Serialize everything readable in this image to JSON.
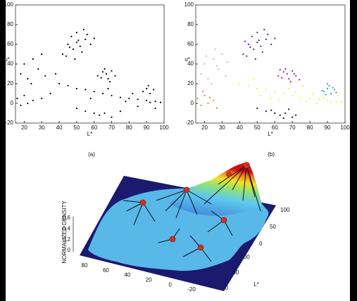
{
  "chart_data": [
    {
      "type": "scatter",
      "xlabel": "L*",
      "ylabel": "u*",
      "caption": "(a)",
      "xlim": [
        15,
        100
      ],
      "ylim": [
        -20,
        100
      ],
      "xticks": [
        20,
        30,
        40,
        50,
        60,
        70,
        80,
        90,
        100
      ],
      "yticks": [
        -20,
        0,
        20,
        40,
        60,
        80,
        100
      ],
      "series": [
        {
          "color": "#000000",
          "x": [
            42,
            45,
            48,
            50,
            52,
            55,
            47,
            44,
            53,
            58,
            50,
            46,
            56,
            60,
            49,
            51,
            54,
            62,
            65,
            67,
            68,
            70,
            72,
            66,
            69,
            64,
            88,
            90,
            92,
            94,
            91,
            40,
            45,
            50,
            55,
            60,
            65,
            70,
            75,
            80,
            85,
            90,
            95,
            98,
            58,
            68,
            78,
            82,
            92,
            18,
            20,
            22,
            25,
            28,
            30,
            32,
            24,
            16,
            18,
            20,
            22,
            25,
            50,
            55,
            60,
            63,
            66,
            70,
            35,
            38,
            30,
            85,
            95,
            75
          ],
          "values": [
            50,
            60,
            55,
            62,
            58,
            65,
            68,
            48,
            52,
            60,
            72,
            57,
            70,
            66,
            45,
            64,
            75,
            28,
            32,
            30,
            25,
            33,
            28,
            35,
            22,
            26,
            12,
            15,
            10,
            14,
            18,
            20,
            18,
            15,
            14,
            12,
            10,
            8,
            6,
            5,
            4,
            3,
            2,
            1,
            5,
            15,
            2,
            10,
            1,
            30,
            40,
            25,
            45,
            35,
            50,
            28,
            20,
            5,
            -2,
            8,
            0,
            3,
            -5,
            -8,
            -10,
            -12,
            -10,
            -14,
            10,
            30,
            5,
            -3,
            -5,
            -8
          ]
        }
      ]
    },
    {
      "type": "scatter",
      "xlabel": "L*",
      "ylabel": "u*",
      "caption": "(b)",
      "xlim": [
        15,
        100
      ],
      "ylim": [
        -20,
        100
      ],
      "xticks": [
        20,
        30,
        40,
        50,
        60,
        70,
        80,
        90,
        100
      ],
      "yticks": [
        -20,
        0,
        20,
        40,
        60,
        80,
        100
      ],
      "series": [
        {
          "color": "#5a1a8a",
          "x": [
            42,
            45,
            48,
            50,
            52,
            55,
            47,
            44,
            53,
            58,
            50,
            46,
            56,
            60,
            49,
            51,
            54,
            43
          ],
          "values": [
            50,
            60,
            55,
            62,
            58,
            65,
            68,
            48,
            52,
            60,
            72,
            57,
            70,
            66,
            45,
            64,
            75,
            63
          ]
        },
        {
          "color": "#b0127a",
          "x": [
            62,
            65,
            67,
            68,
            70,
            72,
            66,
            69,
            64,
            71,
            74,
            63
          ],
          "values": [
            28,
            32,
            30,
            25,
            33,
            28,
            35,
            22,
            26,
            30,
            24,
            34
          ]
        },
        {
          "color": "#1fa2c8",
          "x": [
            88,
            90,
            92,
            94,
            91,
            89,
            93,
            95,
            90,
            87
          ],
          "values": [
            12,
            15,
            10,
            14,
            18,
            9,
            16,
            11,
            20,
            13
          ]
        },
        {
          "color": "#f2f232",
          "x": [
            40,
            45,
            50,
            55,
            60,
            65,
            70,
            75,
            80,
            85,
            90,
            95,
            98,
            58,
            62,
            68,
            72,
            78,
            82,
            88,
            92,
            52,
            48,
            76,
            84,
            96
          ],
          "values": [
            20,
            18,
            15,
            14,
            12,
            10,
            8,
            6,
            5,
            4,
            3,
            2,
            1,
            5,
            3,
            15,
            12,
            2,
            10,
            6,
            1,
            8,
            25,
            18,
            0,
            8
          ]
        },
        {
          "color": "#9ccf8c",
          "x": [
            18,
            20,
            22,
            25,
            28,
            30,
            32,
            24,
            27,
            21,
            33,
            26
          ],
          "values": [
            30,
            40,
            25,
            45,
            35,
            50,
            28,
            20,
            38,
            48,
            42,
            55
          ]
        },
        {
          "color": "#e0785a",
          "x": [
            16,
            18,
            20,
            22,
            25,
            27,
            19,
            23
          ],
          "values": [
            5,
            -2,
            8,
            0,
            3,
            -5,
            12,
            6
          ]
        },
        {
          "color": "#111111",
          "x": [
            50,
            55,
            60,
            63,
            66,
            70,
            58,
            65,
            68,
            72
          ],
          "values": [
            -5,
            -8,
            -10,
            -12,
            -10,
            -14,
            -7,
            -15,
            -6,
            -12
          ]
        }
      ]
    },
    {
      "type": "surface",
      "zlabel": "NORMALIZED DENSITY",
      "xlabel": "L*",
      "zticks": [
        0,
        0.2,
        0.4,
        0.6
      ],
      "uticks": [
        -20,
        0,
        20,
        40,
        60,
        80
      ],
      "vticks": [
        0,
        50,
        100
      ],
      "Lticks": [
        0,
        50,
        100
      ]
    }
  ]
}
